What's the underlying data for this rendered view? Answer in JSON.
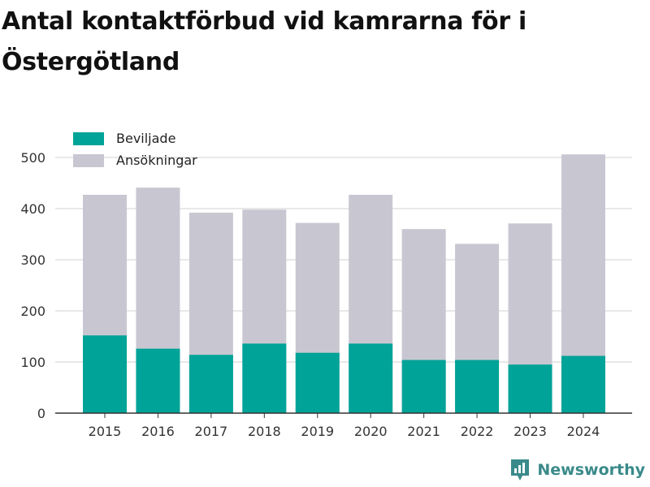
{
  "title": "Antal kontaktförbud vid kamrarna för i Östergötland",
  "brand": {
    "name": "Newsworthy",
    "icon": "newsworthy-logo-icon"
  },
  "colors": {
    "beviljade": "#00a398",
    "ansokningar": "#c8c7d1",
    "grid": "#e0e0e0",
    "axis": "#333333"
  },
  "chart_data": {
    "type": "bar",
    "stacking": "overlay",
    "categories": [
      "2015",
      "2016",
      "2017",
      "2018",
      "2019",
      "2020",
      "2021",
      "2022",
      "2023",
      "2024"
    ],
    "series": [
      {
        "name": "Beviljade",
        "color": "#00a398",
        "values": [
          152,
          126,
          114,
          136,
          118,
          136,
          104,
          104,
          95,
          112
        ]
      },
      {
        "name": "Ansökningar",
        "color": "#c8c7d1",
        "values": [
          427,
          441,
          392,
          398,
          372,
          427,
          360,
          331,
          371,
          506
        ]
      }
    ],
    "yticks": [
      0,
      100,
      200,
      300,
      400,
      500
    ],
    "ylim": [
      0,
      520
    ],
    "grid": true,
    "legend": "top-left",
    "xlabel": "",
    "ylabel": ""
  }
}
